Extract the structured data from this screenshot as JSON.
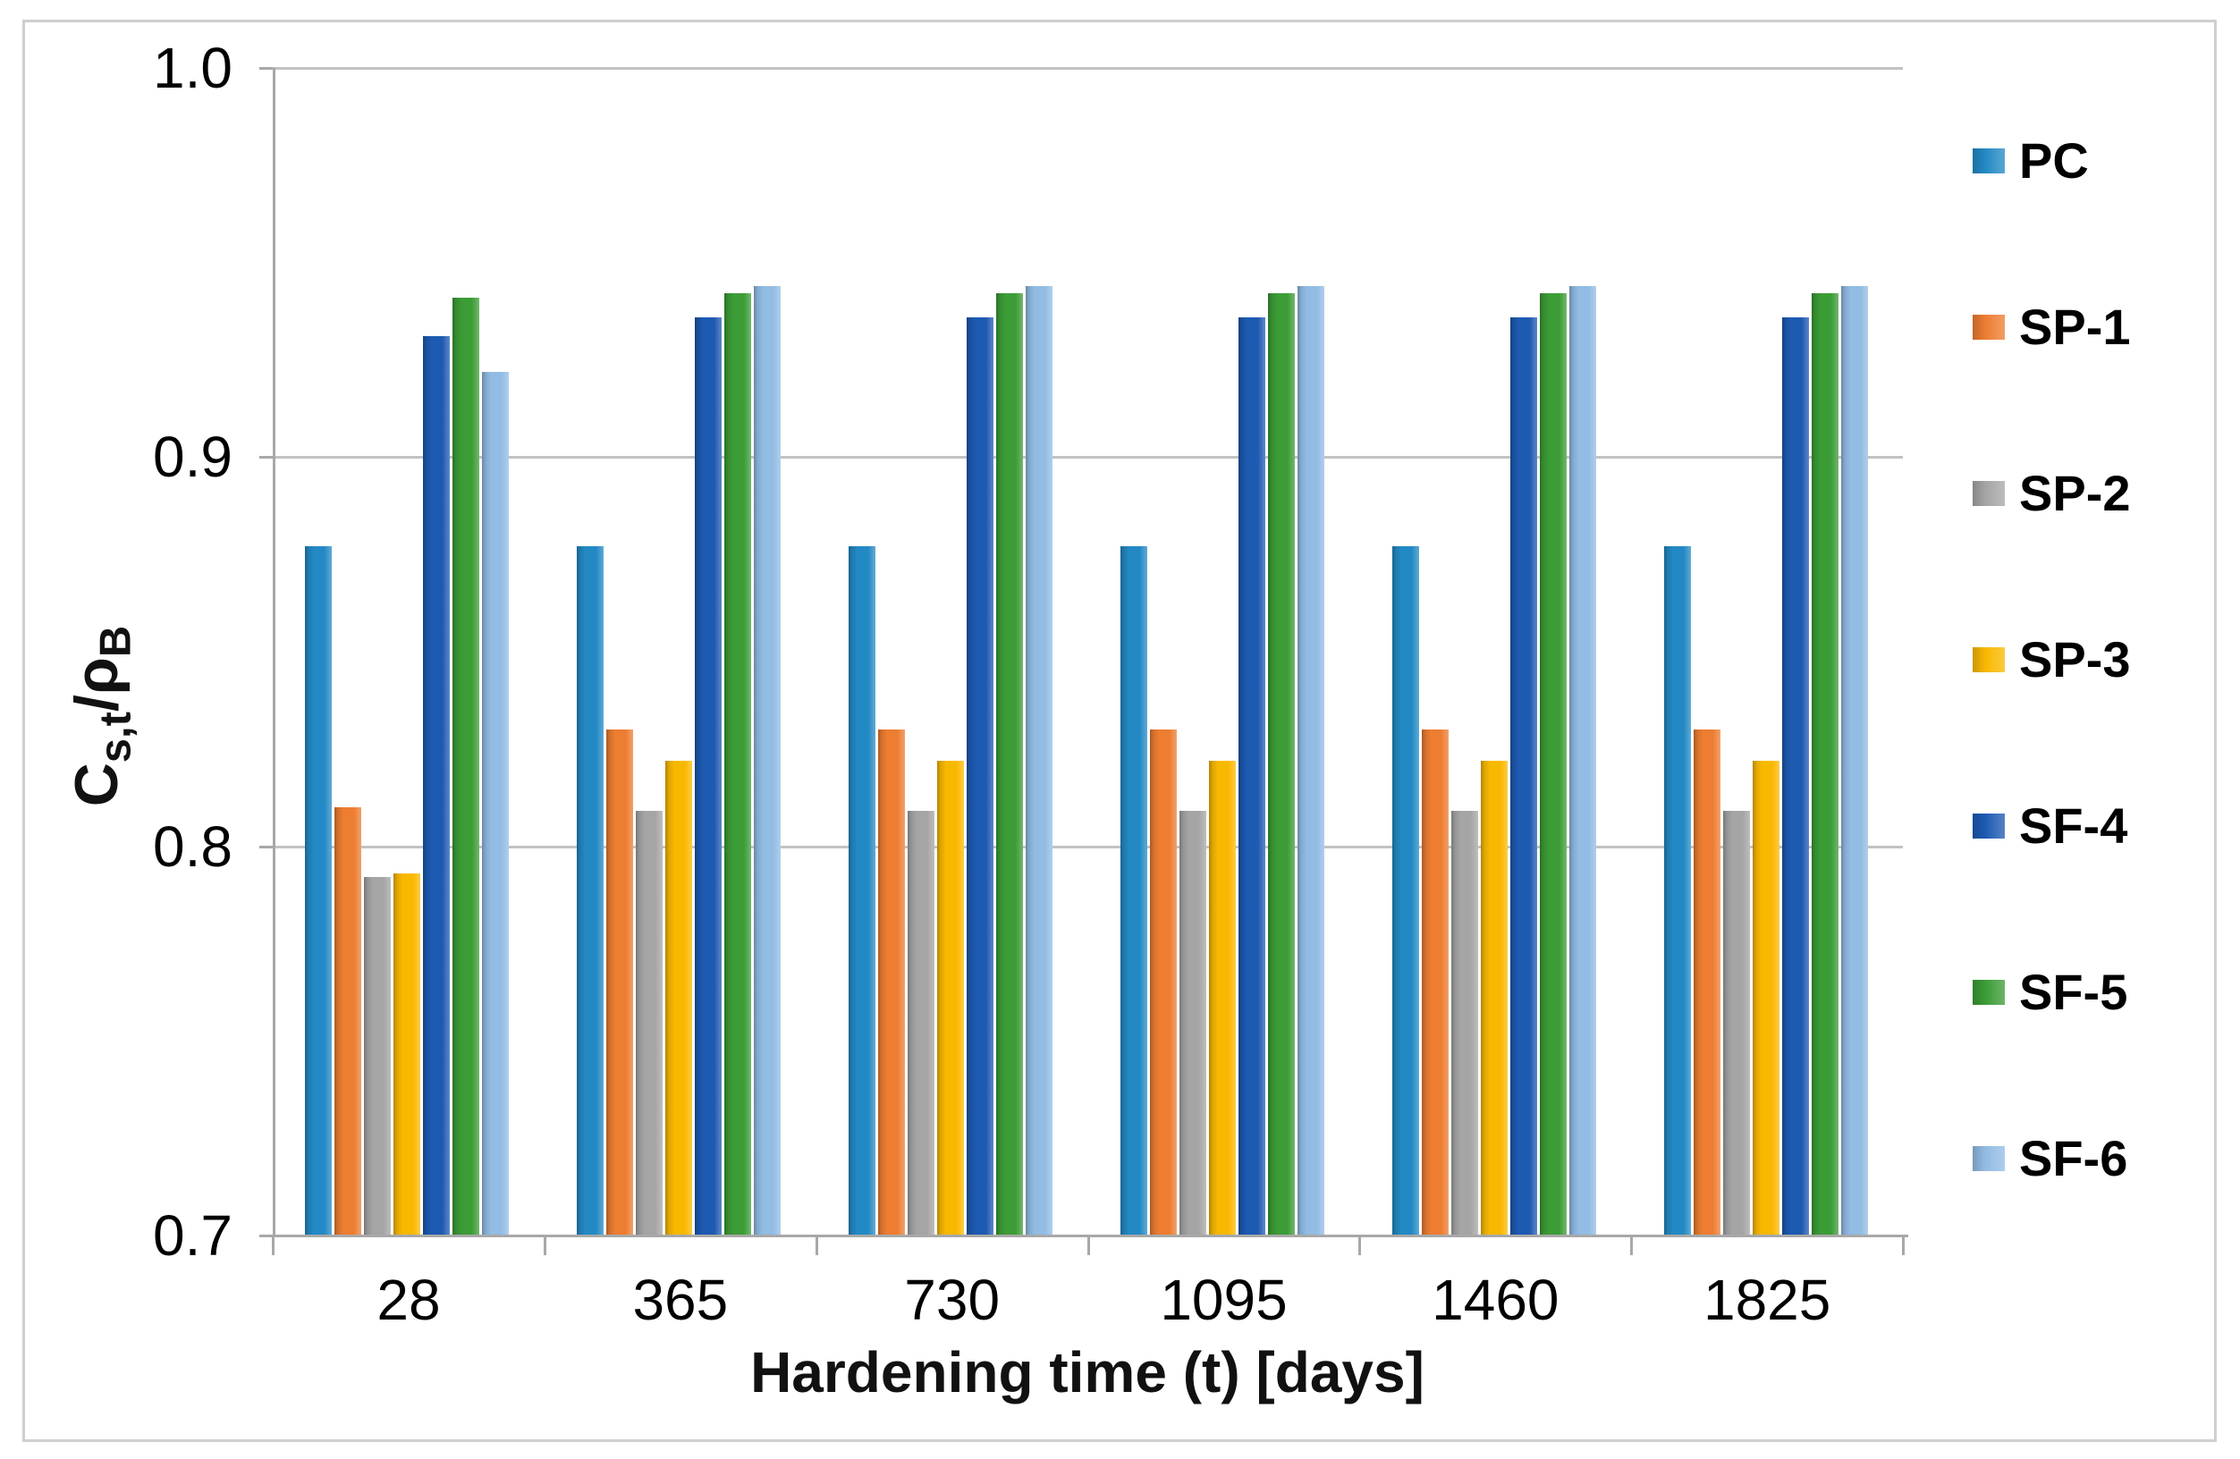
{
  "figure": {
    "background": "#ffffff",
    "border_color": "#cfcfcf"
  },
  "chart_data": {
    "type": "bar",
    "title": "",
    "xlabel": "Hardening time (t) [days]",
    "ylabel": "Cs,t/ρB",
    "ylabel_parts": [
      {
        "text": "C",
        "sub": false
      },
      {
        "text": "s,t",
        "sub": true
      },
      {
        "text": "/ρ",
        "sub": false
      },
      {
        "text": "B",
        "sub": true
      }
    ],
    "categories": [
      "28",
      "365",
      "730",
      "1095",
      "1460",
      "1825"
    ],
    "series": [
      {
        "name": "PC",
        "color": "#2389c4",
        "values": [
          0.877,
          0.877,
          0.877,
          0.877,
          0.877,
          0.877
        ]
      },
      {
        "name": "SP-1",
        "color": "#ed7d31",
        "values": [
          0.81,
          0.83,
          0.83,
          0.83,
          0.83,
          0.83
        ]
      },
      {
        "name": "SP-2",
        "color": "#a5a5a5",
        "values": [
          0.792,
          0.809,
          0.809,
          0.809,
          0.809,
          0.809
        ]
      },
      {
        "name": "SP-3",
        "color": "#f9b800",
        "values": [
          0.793,
          0.822,
          0.822,
          0.822,
          0.822,
          0.822
        ]
      },
      {
        "name": "SF-4",
        "color": "#1d5ab2",
        "values": [
          0.931,
          0.936,
          0.936,
          0.936,
          0.936,
          0.936
        ]
      },
      {
        "name": "SF-5",
        "color": "#3b9c35",
        "values": [
          0.941,
          0.942,
          0.942,
          0.942,
          0.942,
          0.942
        ]
      },
      {
        "name": "SF-6",
        "color": "#92bce4",
        "values": [
          0.922,
          0.944,
          0.944,
          0.944,
          0.944,
          0.944
        ]
      }
    ],
    "ylim": [
      0.7,
      1.0
    ],
    "yticks": [
      1.0,
      0.9,
      0.8,
      0.7
    ],
    "ytick_labels": [
      "1.0",
      "0.9",
      "0.8",
      "0.7"
    ],
    "grid": true,
    "legend_position": "right",
    "gridline_color": "#c2c2c2",
    "axis_color": "#a8a8a8",
    "text_color": "#000000"
  }
}
